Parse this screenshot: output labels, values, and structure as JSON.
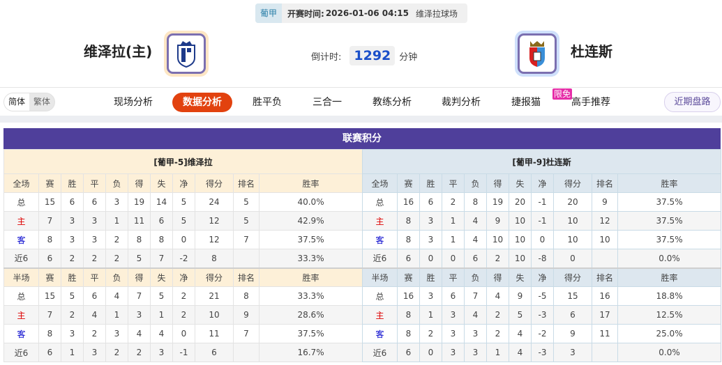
{
  "match": {
    "league": "葡甲",
    "time_label": "开赛时间:",
    "time": "2026-01-06 04:15",
    "venue": "维泽拉球场"
  },
  "home": {
    "name": "维泽拉(主)",
    "logo_bg": "#fde6c4"
  },
  "away": {
    "name": "杜连斯",
    "logo_bg": "#cfe0fb"
  },
  "countdown": {
    "label": "倒计时:",
    "value": "1292",
    "unit": "分钟"
  },
  "lang": {
    "simplified": "简体",
    "traditional": "繁体"
  },
  "tabs": [
    "现场分析",
    "数据分析",
    "胜平负",
    "三合一",
    "教练分析",
    "裁判分析",
    "捷报猫",
    "高手推荐"
  ],
  "active_tab": "数据分析",
  "free_badge": "限免",
  "recent_button": "近期盘路",
  "section_title": "联赛积分",
  "columns_full": [
    "全场",
    "赛",
    "胜",
    "平",
    "负",
    "得",
    "失",
    "净",
    "得分",
    "排名",
    "胜率"
  ],
  "columns_half": [
    "半场",
    "赛",
    "胜",
    "平",
    "负",
    "得",
    "失",
    "净",
    "得分",
    "排名",
    "胜率"
  ],
  "tables": [
    {
      "name": "[葡甲-5]维泽拉",
      "full": [
        [
          "总",
          "15",
          "6",
          "6",
          "3",
          "19",
          "14",
          "5",
          "24",
          "5",
          "40.0%"
        ],
        [
          "主",
          "7",
          "3",
          "3",
          "1",
          "11",
          "6",
          "5",
          "12",
          "5",
          "42.9%"
        ],
        [
          "客",
          "8",
          "3",
          "3",
          "2",
          "8",
          "8",
          "0",
          "12",
          "7",
          "37.5%"
        ],
        [
          "近6",
          "6",
          "2",
          "2",
          "2",
          "5",
          "7",
          "-2",
          "8",
          "",
          "33.3%"
        ]
      ],
      "half": [
        [
          "总",
          "15",
          "5",
          "6",
          "4",
          "7",
          "5",
          "2",
          "21",
          "8",
          "33.3%"
        ],
        [
          "主",
          "7",
          "2",
          "4",
          "1",
          "3",
          "1",
          "2",
          "10",
          "9",
          "28.6%"
        ],
        [
          "客",
          "8",
          "3",
          "2",
          "3",
          "4",
          "4",
          "0",
          "11",
          "7",
          "37.5%"
        ],
        [
          "近6",
          "6",
          "1",
          "3",
          "2",
          "2",
          "3",
          "-1",
          "6",
          "",
          "16.7%"
        ]
      ]
    },
    {
      "name": "[葡甲-9]杜连斯",
      "full": [
        [
          "总",
          "16",
          "6",
          "2",
          "8",
          "19",
          "20",
          "-1",
          "20",
          "9",
          "37.5%"
        ],
        [
          "主",
          "8",
          "3",
          "1",
          "4",
          "9",
          "10",
          "-1",
          "10",
          "12",
          "37.5%"
        ],
        [
          "客",
          "8",
          "3",
          "1",
          "4",
          "10",
          "10",
          "0",
          "10",
          "10",
          "37.5%"
        ],
        [
          "近6",
          "6",
          "0",
          "0",
          "6",
          "2",
          "10",
          "-8",
          "0",
          "",
          "0.0%"
        ]
      ],
      "half": [
        [
          "总",
          "16",
          "3",
          "6",
          "7",
          "4",
          "9",
          "-5",
          "15",
          "16",
          "18.8%"
        ],
        [
          "主",
          "8",
          "1",
          "3",
          "4",
          "2",
          "5",
          "-3",
          "6",
          "17",
          "12.5%"
        ],
        [
          "客",
          "8",
          "2",
          "3",
          "3",
          "2",
          "4",
          "-2",
          "9",
          "11",
          "25.0%"
        ],
        [
          "近6",
          "6",
          "0",
          "3",
          "3",
          "1",
          "4",
          "-3",
          "3",
          "",
          "0.0%"
        ]
      ]
    }
  ],
  "colors": {
    "title_bg": "#4f3f9b",
    "active_tab": "#e2420f",
    "home_label": "#dd0000",
    "away_label": "#0000cc"
  }
}
